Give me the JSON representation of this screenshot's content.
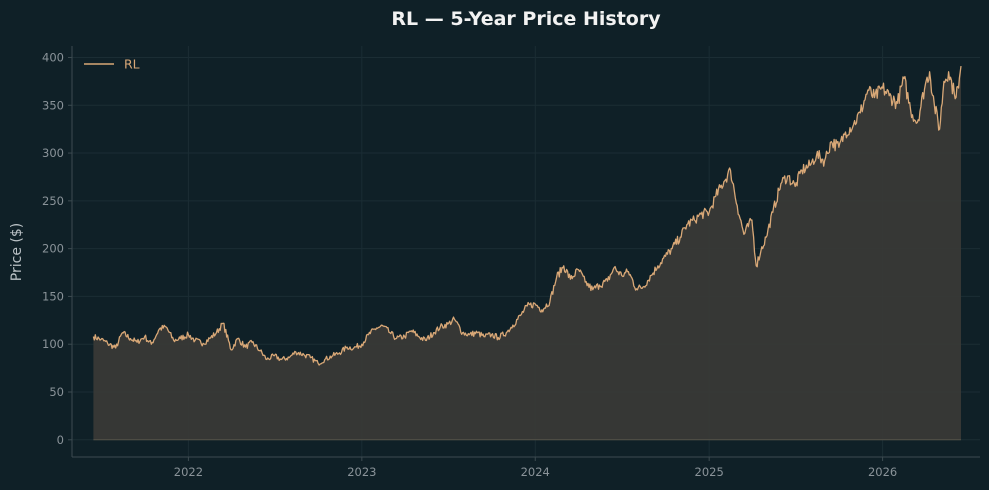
{
  "colors": {
    "background": "#0f2027",
    "axis": "#3c4a50",
    "grid": "#1b2d34",
    "tick_text": "#8a9399",
    "title_text": "#f2f2f2",
    "label_text": "#b9c0c4",
    "line": "#d9a877",
    "fill": "#3a3a36"
  },
  "chart_data": {
    "type": "area",
    "title": "RL — 5-Year Price History",
    "xlabel": "",
    "ylabel": "Price ($)",
    "xlim": [
      "2021-05-01",
      "2026-07-25"
    ],
    "ylim": [
      -18,
      412
    ],
    "x_ticks": [
      "2022",
      "2023",
      "2024",
      "2025",
      "2026"
    ],
    "y_ticks": [
      0,
      50,
      100,
      150,
      200,
      250,
      300,
      350,
      400
    ],
    "grid": true,
    "legend": {
      "position": "top-left",
      "entries": [
        "RL"
      ]
    },
    "series": [
      {
        "name": "RL",
        "points": [
          [
            "2021-06-15",
            108
          ],
          [
            "2021-07-01",
            105
          ],
          [
            "2021-07-15",
            101
          ],
          [
            "2021-08-01",
            96
          ],
          [
            "2021-08-15",
            112
          ],
          [
            "2021-09-01",
            106
          ],
          [
            "2021-09-15",
            102
          ],
          [
            "2021-10-01",
            108
          ],
          [
            "2021-10-15",
            100
          ],
          [
            "2021-11-01",
            116
          ],
          [
            "2021-11-15",
            118
          ],
          [
            "2021-12-01",
            104
          ],
          [
            "2021-12-15",
            106
          ],
          [
            "2022-01-01",
            110
          ],
          [
            "2022-01-15",
            104
          ],
          [
            "2022-02-01",
            101
          ],
          [
            "2022-02-15",
            106
          ],
          [
            "2022-03-01",
            112
          ],
          [
            "2022-03-15",
            122
          ],
          [
            "2022-04-01",
            94
          ],
          [
            "2022-04-15",
            106
          ],
          [
            "2022-05-01",
            97
          ],
          [
            "2022-05-15",
            102
          ],
          [
            "2022-06-01",
            93
          ],
          [
            "2022-06-15",
            84
          ],
          [
            "2022-07-01",
            88
          ],
          [
            "2022-07-15",
            84
          ],
          [
            "2022-08-01",
            86
          ],
          [
            "2022-08-15",
            92
          ],
          [
            "2022-09-01",
            89
          ],
          [
            "2022-09-15",
            86
          ],
          [
            "2022-10-01",
            80
          ],
          [
            "2022-10-15",
            84
          ],
          [
            "2022-11-01",
            88
          ],
          [
            "2022-11-15",
            91
          ],
          [
            "2022-12-01",
            97
          ],
          [
            "2022-12-15",
            96
          ],
          [
            "2023-01-01",
            100
          ],
          [
            "2023-01-15",
            110
          ],
          [
            "2023-02-01",
            117
          ],
          [
            "2023-02-15",
            119
          ],
          [
            "2023-03-01",
            112
          ],
          [
            "2023-03-15",
            106
          ],
          [
            "2023-04-01",
            108
          ],
          [
            "2023-04-15",
            114
          ],
          [
            "2023-05-01",
            108
          ],
          [
            "2023-05-15",
            104
          ],
          [
            "2023-06-01",
            112
          ],
          [
            "2023-06-15",
            118
          ],
          [
            "2023-07-01",
            121
          ],
          [
            "2023-07-15",
            126
          ],
          [
            "2023-08-01",
            112
          ],
          [
            "2023-08-15",
            110
          ],
          [
            "2023-09-01",
            112
          ],
          [
            "2023-09-15",
            108
          ],
          [
            "2023-10-01",
            110
          ],
          [
            "2023-10-15",
            107
          ],
          [
            "2023-11-01",
            112
          ],
          [
            "2023-11-15",
            120
          ],
          [
            "2023-12-01",
            130
          ],
          [
            "2023-12-15",
            140
          ],
          [
            "2024-01-01",
            142
          ],
          [
            "2024-01-15",
            136
          ],
          [
            "2024-02-01",
            145
          ],
          [
            "2024-02-15",
            170
          ],
          [
            "2024-03-01",
            182
          ],
          [
            "2024-03-15",
            168
          ],
          [
            "2024-04-01",
            178
          ],
          [
            "2024-04-15",
            165
          ],
          [
            "2024-05-01",
            157
          ],
          [
            "2024-05-15",
            162
          ],
          [
            "2024-06-01",
            166
          ],
          [
            "2024-06-15",
            180
          ],
          [
            "2024-07-01",
            172
          ],
          [
            "2024-07-15",
            176
          ],
          [
            "2024-08-01",
            158
          ],
          [
            "2024-08-15",
            160
          ],
          [
            "2024-09-01",
            172
          ],
          [
            "2024-09-15",
            182
          ],
          [
            "2024-10-01",
            192
          ],
          [
            "2024-10-15",
            200
          ],
          [
            "2024-11-01",
            212
          ],
          [
            "2024-11-15",
            225
          ],
          [
            "2024-12-01",
            230
          ],
          [
            "2024-12-15",
            236
          ],
          [
            "2025-01-01",
            238
          ],
          [
            "2025-01-15",
            255
          ],
          [
            "2025-02-01",
            270
          ],
          [
            "2025-02-15",
            282
          ],
          [
            "2025-03-01",
            245
          ],
          [
            "2025-03-15",
            215
          ],
          [
            "2025-04-01",
            230
          ],
          [
            "2025-04-10",
            182
          ],
          [
            "2025-04-20",
            198
          ],
          [
            "2025-05-01",
            212
          ],
          [
            "2025-05-15",
            238
          ],
          [
            "2025-06-01",
            268
          ],
          [
            "2025-06-15",
            276
          ],
          [
            "2025-07-01",
            265
          ],
          [
            "2025-07-15",
            282
          ],
          [
            "2025-08-01",
            287
          ],
          [
            "2025-08-15",
            298
          ],
          [
            "2025-09-01",
            292
          ],
          [
            "2025-09-15",
            312
          ],
          [
            "2025-10-01",
            306
          ],
          [
            "2025-10-15",
            322
          ],
          [
            "2025-11-01",
            330
          ],
          [
            "2025-11-15",
            342
          ],
          [
            "2025-12-01",
            366
          ],
          [
            "2025-12-15",
            358
          ],
          [
            "2026-01-01",
            368
          ],
          [
            "2026-01-15",
            360
          ],
          [
            "2026-02-01",
            352
          ],
          [
            "2026-02-15",
            378
          ],
          [
            "2026-03-01",
            345
          ],
          [
            "2026-03-15",
            332
          ],
          [
            "2026-04-01",
            372
          ],
          [
            "2026-04-10",
            385
          ],
          [
            "2026-04-20",
            350
          ],
          [
            "2026-05-01",
            325
          ],
          [
            "2026-05-10",
            375
          ],
          [
            "2026-05-20",
            385
          ],
          [
            "2026-06-01",
            362
          ],
          [
            "2026-06-10",
            368
          ],
          [
            "2026-06-15",
            391
          ]
        ]
      }
    ]
  }
}
